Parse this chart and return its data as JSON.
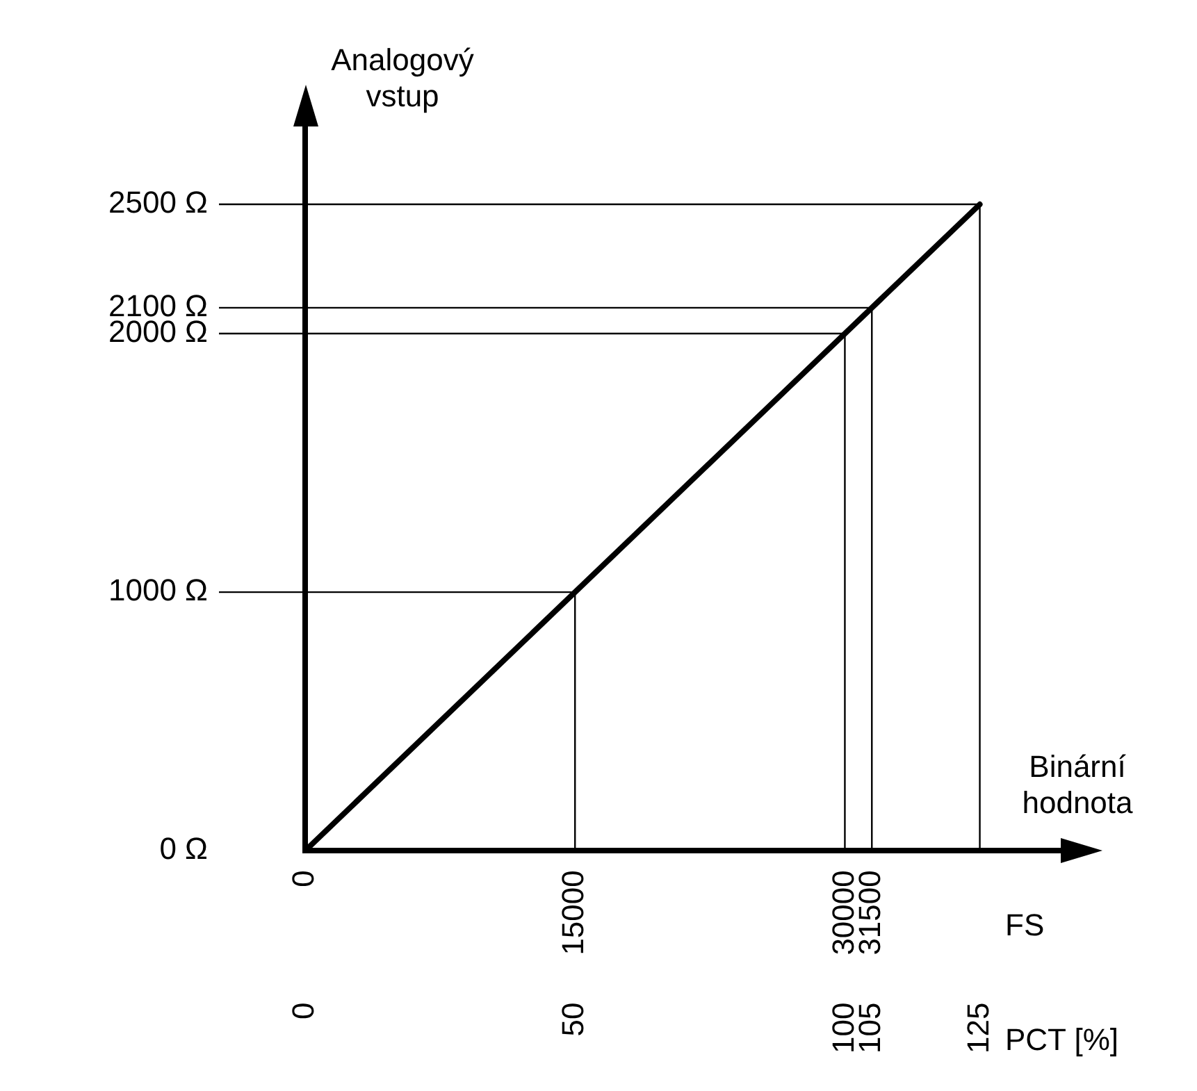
{
  "chart_data": {
    "type": "line",
    "xlabel": "Binární hodnota",
    "ylabel": "Analogový vstup",
    "x2label": "PCT [%]",
    "annotations": [
      "FS"
    ],
    "x": [
      0,
      37500
    ],
    "series": [
      {
        "color": "#000000",
        "values": [
          0,
          2500
        ]
      }
    ],
    "xlim": [
      0,
      42000
    ],
    "xticks": [
      0,
      15000,
      30000,
      31500
    ],
    "x2lim": [
      0,
      140
    ],
    "x2ticks": [
      0,
      50,
      100,
      105,
      125
    ],
    "ylim": [
      0,
      2800
    ],
    "yticks": [
      {
        "value": 0,
        "label": "0 Ω"
      },
      {
        "value": 1000,
        "label": "1000 Ω"
      },
      {
        "value": 2000,
        "label": "2000 Ω"
      },
      {
        "value": 2100,
        "label": "2100 Ω"
      },
      {
        "value": 2500,
        "label": "2500 Ω"
      }
    ],
    "ref_lines": [
      {
        "axis": "x",
        "value": 15000
      },
      {
        "axis": "x",
        "value": 30000
      },
      {
        "axis": "x",
        "value": 31500
      },
      {
        "axis": "x",
        "value": 37500
      },
      {
        "axis": "y",
        "value": 1000
      },
      {
        "axis": "y",
        "value": 2000
      },
      {
        "axis": "y",
        "value": 2100
      },
      {
        "axis": "y",
        "value": 2500
      }
    ],
    "grid": false,
    "legend": false,
    "marker": "none",
    "line_style": "solid"
  }
}
